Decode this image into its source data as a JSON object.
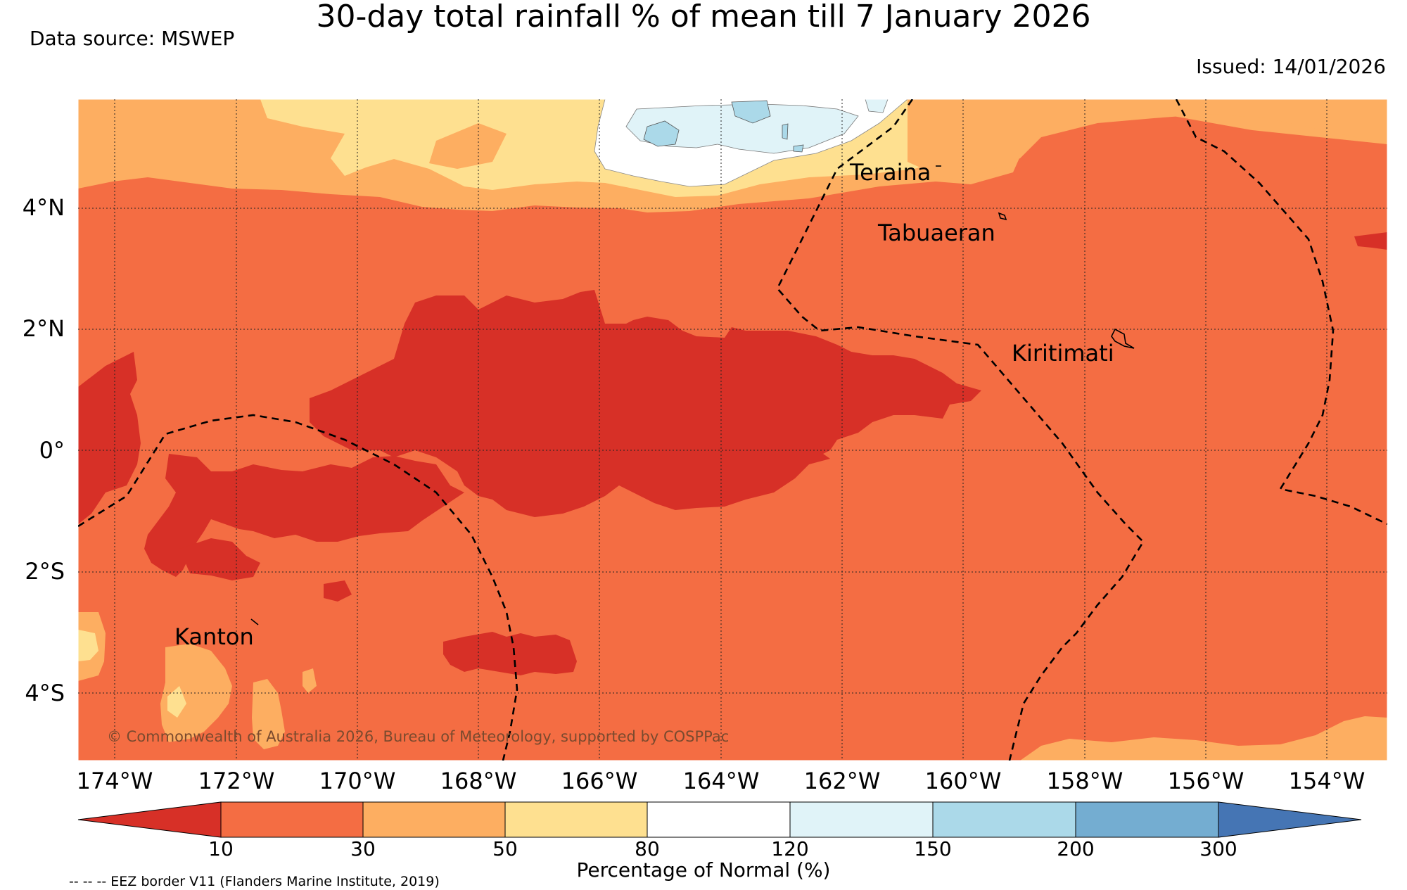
{
  "title": "30-day total rainfall % of mean till 7 January 2026",
  "data_source": "Data source: MSWEP",
  "issued": "Issued: 14/01/2026",
  "lat_labels": [
    "4°N",
    "2°N",
    "0°",
    "2°S",
    "4°S"
  ],
  "lon_labels": [
    "174°W",
    "172°W",
    "170°W",
    "168°W",
    "166°W",
    "164°W",
    "162°W",
    "160°W",
    "158°W",
    "156°W",
    "154°W"
  ],
  "places": {
    "teraina": "Teraina",
    "tabuaeran": "Tabuaeran",
    "kiritimati": "Kiritimati",
    "kanton": "Kanton"
  },
  "copyright": "© Commonwealth of Australia 2026, Bureau of Meteorology, supported by COSPPac",
  "colorbar": {
    "ticks": [
      "10",
      "30",
      "50",
      "80",
      "120",
      "150",
      "200",
      "300"
    ],
    "title": "Percentage of Normal (%)",
    "colors": [
      "#d73027",
      "#f46d43",
      "#fdae61",
      "#fee090",
      "#ffffff",
      "#e0f3f8",
      "#abd9e9",
      "#74add1",
      "#4575b4"
    ]
  },
  "eez_note": "-- -- -- EEZ border V11 (Flanders Marine Institute, 2019)"
}
